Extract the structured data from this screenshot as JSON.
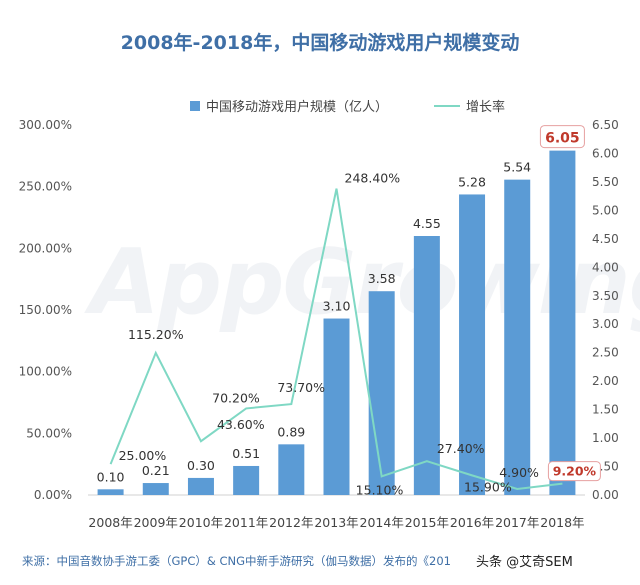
{
  "title": "2008年-2018年，中国移动游戏用户规模变动",
  "legend": {
    "bar": "中国移动游戏用户规模（亿人）",
    "line": "增长率"
  },
  "source": "来源：中国音数协手游工委（GPC）& CNG中新手游研究（伽马数据）发布的《201",
  "watermark": "头条 @艾奇SEM",
  "logo_watermark": "AppGrowing",
  "colors": {
    "bar": "#5b9bd5",
    "line": "#7fd8c4",
    "title": "#3f6fa6",
    "highlight": "#c0392b"
  },
  "chart_data": {
    "type": "bar",
    "title": "2008年-2018年，中国移动游戏用户规模变动",
    "categories": [
      "2008年",
      "2009年",
      "2010年",
      "2011年",
      "2012年",
      "2013年",
      "2014年",
      "2015年",
      "2016年",
      "2017年",
      "2018年"
    ],
    "series": [
      {
        "name": "中国移动游戏用户规模（亿人）",
        "type": "bar",
        "axis": "right",
        "values": [
          0.1,
          0.21,
          0.3,
          0.51,
          0.89,
          3.1,
          3.58,
          4.55,
          5.28,
          5.54,
          6.05
        ],
        "labels": [
          "0.10",
          "0.21",
          "0.30",
          "0.51",
          "0.89",
          "3.10",
          "3.58",
          "4.55",
          "5.28",
          "5.54",
          "6.05"
        ]
      },
      {
        "name": "增长率",
        "type": "line",
        "axis": "left",
        "values": [
          25.0,
          115.2,
          43.6,
          70.2,
          73.7,
          248.4,
          15.1,
          27.4,
          15.9,
          4.9,
          9.2
        ],
        "labels": [
          "25.00%",
          "115.20%",
          "43.60%",
          "70.20%",
          "73.70%",
          "248.40%",
          "15.10%",
          "27.40%",
          "15.90%",
          "4.90%",
          "9.20%"
        ]
      }
    ],
    "left_axis": {
      "ticks": [
        "0.00%",
        "50.00%",
        "100.00%",
        "150.00%",
        "200.00%",
        "250.00%",
        "300.00%"
      ],
      "range": [
        0,
        300
      ]
    },
    "right_axis": {
      "ticks": [
        "0.00",
        "0.50",
        "1.00",
        "1.50",
        "2.00",
        "2.50",
        "3.00",
        "3.50",
        "4.00",
        "4.50",
        "5.00",
        "5.50",
        "6.00",
        "6.50"
      ],
      "range": [
        0,
        6.5
      ]
    },
    "highlighted": [
      "6.05",
      "9.20%"
    ]
  }
}
